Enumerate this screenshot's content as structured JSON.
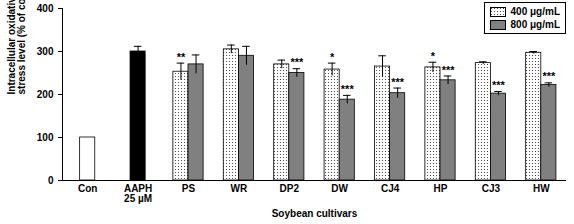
{
  "chart_data": {
    "type": "bar",
    "y_label": "Intracellular oxidative\nstress level (% of control)",
    "x_label": "Soybean cultivars",
    "categories": [
      "Con",
      "AAPH\n25 µM",
      "PS",
      "WR",
      "DP2",
      "DW",
      "CJ4",
      "HP",
      "CJ3",
      "HW"
    ],
    "series": [
      {
        "colors": [
          "#ffffff",
          "#000000",
          null,
          null,
          null,
          null,
          null,
          null,
          null,
          null
        ],
        "values": [
          100,
          300,
          null,
          null,
          null,
          null,
          null,
          null,
          null,
          null
        ],
        "errors": [
          null,
          12,
          null,
          null,
          null,
          null,
          null,
          null,
          null,
          null
        ]
      },
      {
        "name": "400 μg/mL",
        "color": "#ffffff",
        "marker": "dots",
        "values": [
          null,
          null,
          253,
          305,
          270,
          258,
          265,
          263,
          273,
          297
        ],
        "errors": [
          null,
          null,
          20,
          10,
          10,
          15,
          25,
          12,
          3,
          3
        ],
        "significance": [
          null,
          null,
          "**",
          null,
          null,
          "*",
          null,
          "*",
          null,
          null
        ]
      },
      {
        "name": "800 μg/mL",
        "color": "#808080",
        "values": [
          null,
          null,
          270,
          290,
          250,
          188,
          203,
          233,
          202,
          222
        ],
        "errors": [
          null,
          null,
          22,
          22,
          10,
          10,
          12,
          10,
          5,
          5
        ],
        "significance": [
          null,
          null,
          null,
          null,
          "***",
          "***",
          "***",
          "***",
          "***",
          "***"
        ]
      }
    ],
    "ylim": [
      0,
      400
    ],
    "yticks": [
      0,
      100,
      200,
      300,
      400
    ],
    "legend": "top-right",
    "grid": false
  }
}
